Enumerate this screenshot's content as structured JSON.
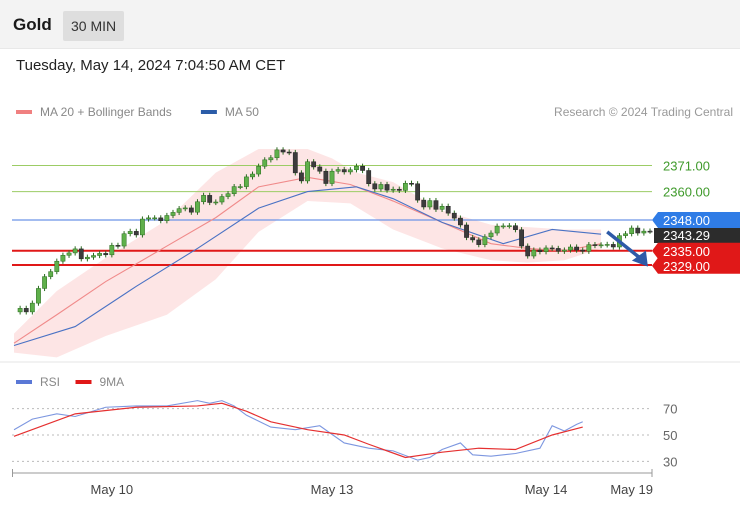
{
  "header": {
    "instrument": "Gold",
    "timeframe": "30 MIN",
    "datetime": "Tuesday, May 14, 2024 7:04:50 AM CET"
  },
  "chart_data": {
    "type": "candlestick",
    "legend": [
      {
        "label": "MA 20 + Bollinger Bands",
        "color": "#f08080"
      },
      {
        "label": "MA 50",
        "color": "#2b5ca8"
      }
    ],
    "credit": "Research © 2024 Trading Central",
    "price_axis": {
      "ylim": [
        2291,
        2386
      ]
    },
    "levels": [
      {
        "value": 2371.0,
        "label": "2371.00",
        "color": "#9ccc65",
        "text_color": "#3f9a2b",
        "type": "target"
      },
      {
        "value": 2360.0,
        "label": "2360.00",
        "color": "#9ccc65",
        "text_color": "#3f9a2b",
        "type": "target"
      },
      {
        "value": 2348.0,
        "label": "2348.00",
        "color": "#6c94e8",
        "badge_color": "#2f7ce6",
        "type": "pivot"
      },
      {
        "value": 2335.0,
        "label": "2335.00",
        "color": "#e01818",
        "badge_color": "#e01818",
        "type": "support"
      },
      {
        "value": 2329.0,
        "label": "2329.00",
        "color": "#e01818",
        "badge_color": "#e01818",
        "type": "support"
      }
    ],
    "last_price": {
      "value": 2343.29,
      "label": "2343.29"
    },
    "forecast_arrow": {
      "from": [
        97,
        2343
      ],
      "to": [
        103,
        2330
      ]
    },
    "x_ticks": [
      {
        "label": "May 10",
        "x": 16
      },
      {
        "label": "May 13",
        "x": 52
      },
      {
        "label": "May 14",
        "x": 87
      },
      {
        "label": "May 19",
        "x": 101
      }
    ],
    "x_range": [
      0,
      104
    ],
    "candles": {
      "start_x": 1,
      "closes": [
        2310.7,
        2309.2,
        2312.9,
        2319.1,
        2324.1,
        2326.2,
        2330.6,
        2333.1,
        2334.1,
        2335.8,
        2331.6,
        2332.3,
        2333,
        2333.9,
        2333.3,
        2337.3,
        2337,
        2342.2,
        2343.2,
        2341.7,
        2348.4,
        2348.9,
        2348.9,
        2347.7,
        2349.9,
        2351.2,
        2352.8,
        2353.1,
        2351.3,
        2355.7,
        2358.4,
        2355.4,
        2355.6,
        2357.9,
        2359.1,
        2362.1,
        2362.1,
        2366.2,
        2367.4,
        2370.7,
        2373.4,
        2374.3,
        2377.6,
        2376.7,
        2376.5,
        2367.9,
        2364.5,
        2372.6,
        2370.4,
        2368.6,
        2363.4,
        2368.6,
        2369.3,
        2368.3,
        2369.2,
        2370.7,
        2368.9,
        2363.3,
        2361.1,
        2363,
        2360.6,
        2361,
        2360.5,
        2363.5,
        2363.3,
        2356.4,
        2353.5,
        2356.2,
        2352.5,
        2353.8,
        2350.9,
        2348.8,
        2345.9,
        2340.6,
        2339.6,
        2337.6,
        2340.9,
        2342.5,
        2345.4,
        2345.5,
        2345.6,
        2343.9,
        2337,
        2332.8,
        2335.3,
        2334.6,
        2336.2,
        2336,
        2334.8,
        2335.3,
        2336.6,
        2335.3,
        2334.8,
        2337.6,
        2337.2,
        2337.5,
        2337.7,
        2336.6,
        2341.4,
        2342.2,
        2344.6,
        2342.5,
        2343.3,
        2343.29
      ]
    },
    "series": [
      {
        "name": "MA 20",
        "values": [
          [
            0,
            2296
          ],
          [
            7,
            2308
          ],
          [
            15,
            2322
          ],
          [
            25,
            2337
          ],
          [
            33,
            2349
          ],
          [
            40,
            2362
          ],
          [
            48,
            2366
          ],
          [
            55,
            2363
          ],
          [
            62,
            2356
          ],
          [
            70,
            2347
          ],
          [
            78,
            2338
          ],
          [
            84,
            2336
          ],
          [
            90,
            2335
          ],
          [
            96,
            2338
          ]
        ]
      },
      {
        "name": "MA 50",
        "values": [
          [
            0,
            2295
          ],
          [
            10,
            2303
          ],
          [
            20,
            2320
          ],
          [
            30,
            2336
          ],
          [
            40,
            2353
          ],
          [
            48,
            2360
          ],
          [
            56,
            2362
          ],
          [
            62,
            2357
          ],
          [
            70,
            2347
          ],
          [
            80,
            2338
          ],
          [
            88,
            2344
          ],
          [
            96,
            2342
          ]
        ]
      }
    ],
    "bollinger": {
      "upper": [
        [
          0,
          2300
        ],
        [
          7,
          2318
        ],
        [
          15,
          2332
        ],
        [
          25,
          2348
        ],
        [
          33,
          2368
        ],
        [
          40,
          2378
        ],
        [
          48,
          2378
        ],
        [
          52,
          2374
        ],
        [
          56,
          2368
        ],
        [
          62,
          2364
        ],
        [
          70,
          2352
        ],
        [
          78,
          2346
        ],
        [
          84,
          2345
        ],
        [
          90,
          2344
        ],
        [
          96,
          2344
        ]
      ],
      "lower": [
        [
          0,
          2292
        ],
        [
          7,
          2290
        ],
        [
          15,
          2299
        ],
        [
          25,
          2308
        ],
        [
          33,
          2323
        ],
        [
          40,
          2343
        ],
        [
          48,
          2356
        ],
        [
          55,
          2355
        ],
        [
          62,
          2344
        ],
        [
          70,
          2336
        ],
        [
          78,
          2331
        ],
        [
          84,
          2330
        ],
        [
          90,
          2331
        ],
        [
          96,
          2336
        ]
      ]
    },
    "rsi_panel": {
      "legend": [
        {
          "label": "RSI",
          "color": "#5a78d6"
        },
        {
          "label": "9MA",
          "color": "#e01818"
        }
      ],
      "ylim": [
        22,
        78
      ],
      "levels": [
        {
          "value": 70,
          "label": "70"
        },
        {
          "value": 50,
          "label": "50"
        },
        {
          "value": 30,
          "label": "30"
        }
      ],
      "rsi": [
        [
          0,
          54
        ],
        [
          3,
          62
        ],
        [
          7,
          66
        ],
        [
          10,
          64
        ],
        [
          15,
          71
        ],
        [
          20,
          72
        ],
        [
          25,
          72
        ],
        [
          30,
          76
        ],
        [
          32,
          74
        ],
        [
          34,
          76
        ],
        [
          36,
          72
        ],
        [
          38,
          65
        ],
        [
          42,
          56
        ],
        [
          46,
          54
        ],
        [
          50,
          57
        ],
        [
          54,
          44
        ],
        [
          58,
          40
        ],
        [
          62,
          38
        ],
        [
          66,
          31
        ],
        [
          68,
          33
        ],
        [
          70,
          39
        ],
        [
          73,
          44
        ],
        [
          75,
          35
        ],
        [
          78,
          34
        ],
        [
          82,
          36
        ],
        [
          86,
          40
        ],
        [
          88,
          57
        ],
        [
          90,
          53
        ],
        [
          92,
          58
        ],
        [
          93,
          60
        ]
      ],
      "ma9": [
        [
          0,
          49
        ],
        [
          10,
          66
        ],
        [
          20,
          71
        ],
        [
          30,
          72
        ],
        [
          34,
          74
        ],
        [
          38,
          68
        ],
        [
          42,
          60
        ],
        [
          48,
          54
        ],
        [
          54,
          50
        ],
        [
          58,
          43
        ],
        [
          64,
          33
        ],
        [
          70,
          37
        ],
        [
          76,
          40
        ],
        [
          82,
          39
        ],
        [
          88,
          50
        ],
        [
          93,
          56
        ]
      ]
    }
  }
}
